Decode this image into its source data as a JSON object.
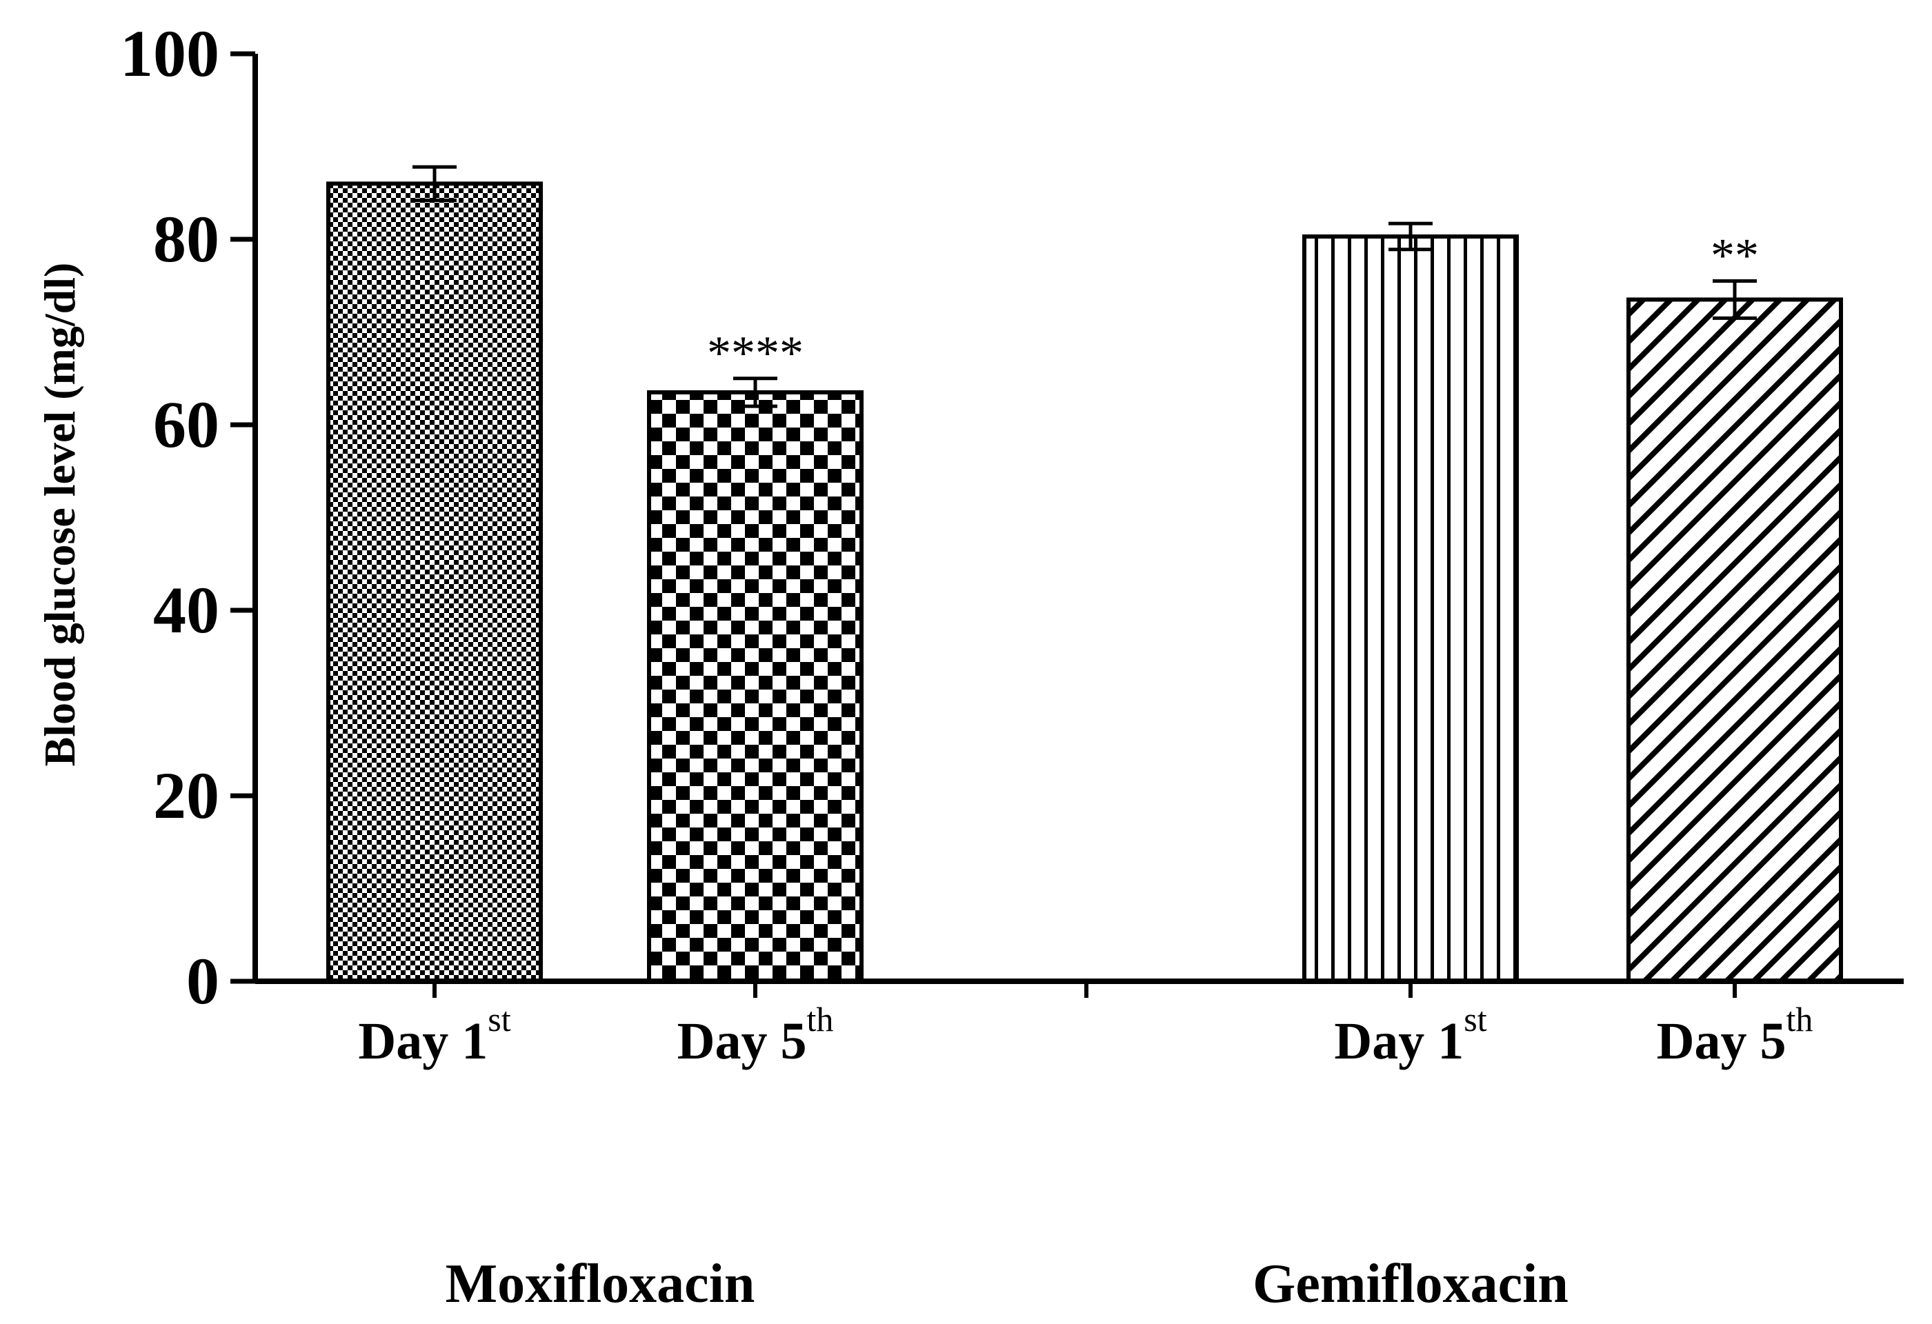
{
  "chart_data": {
    "type": "bar",
    "title": "",
    "xlabel": "",
    "ylabel": "Blood glucose level (mg/dl)",
    "ylim": [
      0,
      100
    ],
    "yticks": [
      0,
      20,
      40,
      60,
      80,
      100
    ],
    "groups": [
      "Moxifloxacin",
      "Gemifloxacin"
    ],
    "bars": [
      {
        "group": "Moxifloxacin",
        "label": "Day 1",
        "sup": "st",
        "value": 86,
        "error": 1.8,
        "significance": "",
        "pattern": "fine-check"
      },
      {
        "group": "Moxifloxacin",
        "label": "Day 5",
        "sup": "th",
        "value": 63.5,
        "error": 1.5,
        "significance": "****",
        "pattern": "coarse-check"
      },
      {
        "group": "Gemifloxacin",
        "label": "Day 1",
        "sup": "st",
        "value": 80.3,
        "error": 1.4,
        "significance": "",
        "pattern": "vertical-stripes"
      },
      {
        "group": "Gemifloxacin",
        "label": "Day 5",
        "sup": "th",
        "value": 73.5,
        "error": 2.0,
        "significance": "**",
        "pattern": "diagonal-stripes"
      }
    ]
  }
}
